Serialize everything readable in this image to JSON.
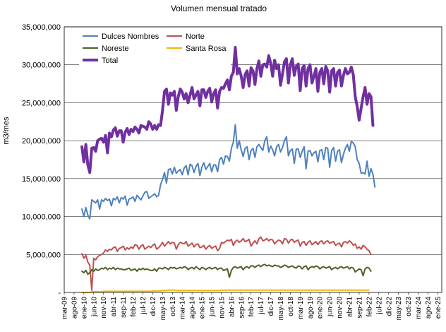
{
  "chart_data": {
    "type": "line",
    "title": "Volumen mensual tratado",
    "xlabel": "",
    "ylabel": "m3/mes",
    "y_ticks": [
      0,
      5000000,
      10000000,
      15000000,
      20000000,
      25000000,
      30000000,
      35000000
    ],
    "y_tick_labels": [
      "-",
      "5,000,000",
      "10,000,000",
      "15,000,000",
      "20,000,000",
      "25,000,000",
      "30,000,000",
      "35,000,000"
    ],
    "ylim": [
      0,
      35000000
    ],
    "x_tick_labels": [
      "mar-09",
      "ago-09",
      "ene-10",
      "jun-10",
      "nov-10",
      "abr-11",
      "sep-11",
      "feb-12",
      "jul-12",
      "dic-12",
      "may-13",
      "oct-13",
      "mar-14",
      "ago-14",
      "ene-15",
      "jun-15",
      "nov-15",
      "abr-16",
      "sep-16",
      "feb-17",
      "jul-17",
      "dic-17",
      "may-18",
      "oct-18",
      "mar-19",
      "ago-19",
      "ene-20",
      "jun-20",
      "nov-20",
      "abr-21",
      "sep-21",
      "feb-22",
      "jul-22",
      "dic-22",
      "may-23",
      "oct-23",
      "mar-24",
      "ago-24",
      "ene-25"
    ],
    "x_range_months": [
      0,
      192
    ],
    "x_tick_every_months": 5,
    "series_start": "dic-09",
    "grid": "horizontal",
    "legend_position": "top-left",
    "colors": {
      "dulces_nombres": "#4f81bd",
      "norte": "#c0504d",
      "noreste": "#4f6228",
      "santa_rosa": "#f2b600",
      "total": "#7030a0"
    },
    "series": [
      {
        "name": "Dulces Nombres",
        "color": "#4f81bd",
        "width": 2,
        "values": [
          11000000,
          10000000,
          11200000,
          10200000,
          9700000,
          12200000,
          12000000,
          11800000,
          12200000,
          11000000,
          12200000,
          12000000,
          12400000,
          12100000,
          12300000,
          11400000,
          12400000,
          12200000,
          12600000,
          11800000,
          12500000,
          12300000,
          12700000,
          11500000,
          12300000,
          12400000,
          12600000,
          12000000,
          12800000,
          12500000,
          12200000,
          12700000,
          13200000,
          13300000,
          12400000,
          12600000,
          12800000,
          13000000,
          12600000,
          12800000,
          14200000,
          14900000,
          15800000,
          14400000,
          16200000,
          16300000,
          15600000,
          16500000,
          15700000,
          16000000,
          16200000,
          15500000,
          16400000,
          16700000,
          15500000,
          16900000,
          16700000,
          15800000,
          16600000,
          17000000,
          15400000,
          16500000,
          17100000,
          16200000,
          16600000,
          17000000,
          15900000,
          16800000,
          16800000,
          15900000,
          17500000,
          17800000,
          16900000,
          18000000,
          17900000,
          17300000,
          19000000,
          19800000,
          22100000,
          19000000,
          20000000,
          18800000,
          17900000,
          19000000,
          19200000,
          17500000,
          18700000,
          19000000,
          17800000,
          19200000,
          19500000,
          19100000,
          18700000,
          20000000,
          20500000,
          18500000,
          19300000,
          18800000,
          18000000,
          19200000,
          19500000,
          18500000,
          19100000,
          20000000,
          20500000,
          18000000,
          18700000,
          18900000,
          17000000,
          18900000,
          18900000,
          17800000,
          18600000,
          19200000,
          16300000,
          18600000,
          18700000,
          18000000,
          18400000,
          18600000,
          17200000,
          18700000,
          18800000,
          17500000,
          19100000,
          19000000,
          16500000,
          18700000,
          19100000,
          17300000,
          18600000,
          18800000,
          17100000,
          18200000,
          19000000,
          19500000,
          18600000,
          19900000,
          19700000,
          19200000,
          17500000,
          17000000,
          15700000,
          15800000,
          15600000,
          17300000,
          15300000,
          16300000,
          15600000,
          13900000
        ]
      },
      {
        "name": "Norte",
        "color": "#c0504d",
        "width": 2,
        "values": [
          5100000,
          4500000,
          4900000,
          4000000,
          3600000,
          300000,
          4500000,
          4300000,
          4700000,
          4900000,
          5000000,
          5200000,
          5600000,
          5400000,
          5700000,
          5600000,
          5900000,
          6000000,
          5400000,
          5800000,
          5900000,
          6100000,
          5600000,
          5900000,
          5700000,
          6000000,
          5800000,
          6300000,
          6200000,
          5700000,
          6100000,
          6300000,
          5700000,
          5900000,
          6100000,
          5900000,
          6200000,
          6400000,
          5700000,
          5900000,
          6200000,
          6600000,
          6100000,
          6400000,
          6700000,
          6400000,
          6600000,
          6500000,
          5700000,
          6300000,
          6600000,
          6500000,
          6400000,
          6700000,
          6100000,
          6300000,
          6500000,
          6000000,
          6300000,
          6400000,
          5900000,
          6000000,
          6200000,
          5700000,
          6000000,
          6200000,
          5800000,
          6000000,
          6100000,
          5500000,
          5800000,
          6600000,
          6500000,
          6700000,
          6900000,
          6800000,
          7000000,
          6200000,
          6700000,
          6900000,
          6600000,
          6800000,
          7100000,
          6700000,
          6800000,
          7000000,
          6100000,
          6500000,
          6800000,
          6400000,
          7100000,
          7300000,
          6800000,
          6900000,
          7100000,
          6800000,
          7000000,
          6900000,
          6400000,
          6700000,
          6900000,
          6800000,
          6400000,
          7100000,
          7000000,
          6500000,
          6900000,
          7000000,
          6600000,
          6800000,
          6900000,
          6100000,
          6600000,
          6700000,
          6200000,
          6600000,
          6800000,
          6300000,
          6500000,
          6700000,
          6300000,
          6700000,
          6800000,
          6400000,
          6700000,
          6800000,
          6500000,
          6600000,
          6700000,
          6200000,
          6400000,
          6500000,
          6000000,
          6600000,
          6700000,
          6500000,
          6800000,
          6600000,
          6200000,
          6400000,
          5800000,
          6000000,
          5700000,
          6200000,
          6000000,
          5700000,
          5500000,
          5000000
        ]
      },
      {
        "name": "Noreste",
        "color": "#4f6228",
        "width": 2,
        "values": [
          2800000,
          2600000,
          2900000,
          2400000,
          2600000,
          3000000,
          2800000,
          3100000,
          2900000,
          3000000,
          3200000,
          3100000,
          3300000,
          3000000,
          3200000,
          3100000,
          3300000,
          3000000,
          3200000,
          3100000,
          3100000,
          3000000,
          3000000,
          3100000,
          3200000,
          2900000,
          3000000,
          3100000,
          2800000,
          3100000,
          3000000,
          3200000,
          3000000,
          3100000,
          3000000,
          2900000,
          2900000,
          3100000,
          2800000,
          3200000,
          3200000,
          3100000,
          3300000,
          3200000,
          3000000,
          3300000,
          3200000,
          3300000,
          3100000,
          3200000,
          3300000,
          3200000,
          3400000,
          3300000,
          3000000,
          3200000,
          3300000,
          3100000,
          3400000,
          3200000,
          3000000,
          3300000,
          3200000,
          3000000,
          3200000,
          3300000,
          3100000,
          3200000,
          3300000,
          3000000,
          3200000,
          3200000,
          2900000,
          3000000,
          3100000,
          2000000,
          2900000,
          3300000,
          3400000,
          3200000,
          3300000,
          3400000,
          3000000,
          3300000,
          3400000,
          3200000,
          3500000,
          3500000,
          3300000,
          3500000,
          3600000,
          3400000,
          3600000,
          3700000,
          3500000,
          3600000,
          3500000,
          3400000,
          3600000,
          3500000,
          3500000,
          3300000,
          3400000,
          3600000,
          3500000,
          3300000,
          3400000,
          3500000,
          3300000,
          3200000,
          3500000,
          3400000,
          3100000,
          3400000,
          3500000,
          3000000,
          3300000,
          3400000,
          3300000,
          3500000,
          3400000,
          3100000,
          3300000,
          3400000,
          3200000,
          3300000,
          3400000,
          3000000,
          3200000,
          3300000,
          3100000,
          3300000,
          3400000,
          3200000,
          3300000,
          3400000,
          3100000,
          3300000,
          3200000,
          2700000,
          2900000,
          3100000,
          3000000,
          2200000,
          3100000,
          3300000,
          3200000,
          2800000
        ]
      },
      {
        "name": "Santa Rosa",
        "color": "#f2b600",
        "width": 2,
        "values": [
          0,
          0,
          0,
          0,
          0,
          100000,
          100000,
          100000,
          100000,
          100000,
          100000,
          150000,
          150000,
          150000,
          150000,
          150000,
          150000,
          150000,
          150000,
          150000,
          150000,
          150000,
          150000,
          150000,
          150000,
          150000,
          150000,
          150000,
          150000,
          150000,
          150000,
          150000,
          150000,
          150000,
          150000,
          150000,
          200000,
          200000,
          200000,
          200000,
          200000,
          250000,
          250000,
          250000,
          300000,
          300000,
          300000,
          300000,
          250000,
          250000,
          250000,
          250000,
          250000,
          250000,
          250000,
          250000,
          250000,
          250000,
          250000,
          250000,
          250000,
          250000,
          250000,
          250000,
          250000,
          250000,
          250000,
          250000,
          250000,
          250000,
          250000,
          300000,
          300000,
          300000,
          300000,
          300000,
          300000,
          300000,
          300000,
          300000,
          300000,
          300000,
          300000,
          300000,
          300000,
          300000,
          300000,
          300000,
          300000,
          300000,
          300000,
          300000,
          300000,
          300000,
          300000,
          300000,
          300000,
          300000,
          300000,
          300000,
          300000,
          300000,
          300000,
          300000,
          300000,
          300000,
          300000,
          300000,
          300000,
          300000,
          300000,
          300000,
          300000,
          300000,
          300000,
          300000,
          300000,
          300000,
          300000,
          300000,
          300000,
          300000,
          300000,
          300000,
          300000,
          300000,
          300000,
          300000,
          300000,
          300000,
          300000,
          300000,
          300000,
          300000,
          300000,
          300000,
          300000,
          300000,
          300000,
          300000,
          300000,
          300000,
          300000,
          300000,
          300000,
          300000,
          300000
        ]
      },
      {
        "name": "Total",
        "color": "#7030a0",
        "width": 4,
        "values": [
          19200000,
          17200000,
          19500000,
          16800000,
          15800000,
          19000000,
          19100000,
          18600000,
          20000000,
          20200000,
          20300000,
          19800000,
          20700000,
          18400000,
          21000000,
          20500000,
          21400000,
          21700000,
          20600000,
          21300000,
          21300000,
          19800000,
          21100000,
          21600000,
          20800000,
          21500000,
          21200000,
          21800000,
          21500000,
          21000000,
          22000000,
          21900000,
          21800000,
          21500000,
          22500000,
          22200000,
          21500000,
          22000000,
          21500000,
          22100000,
          22000000,
          24000000,
          26500000,
          26800000,
          24800000,
          26300000,
          26000000,
          26500000,
          24000000,
          25800000,
          26800000,
          26400000,
          25500000,
          26200000,
          25000000,
          26000000,
          27000000,
          25500000,
          26000000,
          26500000,
          24600000,
          26700000,
          26700000,
          25700000,
          26500000,
          26900000,
          25100000,
          26200000,
          26700000,
          24300000,
          26500000,
          27000000,
          26900000,
          27500000,
          28000000,
          26700000,
          28500000,
          29000000,
          32300000,
          28800000,
          29500000,
          28500000,
          27000000,
          28700000,
          29200000,
          27200000,
          29600000,
          29200000,
          27400000,
          29500000,
          30500000,
          28500000,
          30000000,
          30100000,
          29700000,
          31200000,
          30200000,
          28500000,
          30600000,
          29500000,
          30000000,
          27300000,
          28800000,
          30400000,
          30800000,
          27600000,
          30000000,
          30800000,
          28600000,
          29800000,
          30100000,
          26600000,
          29500000,
          29900000,
          27200000,
          29500000,
          30000000,
          27600000,
          28500000,
          29500000,
          26500000,
          29000000,
          29500000,
          27500000,
          29800000,
          29200000,
          26400000,
          29200000,
          29500000,
          27200000,
          29000000,
          29300000,
          27200000,
          28600000,
          29500000,
          28800000,
          29000000,
          29700000,
          28700000,
          25800000,
          24500000,
          22700000,
          24300000,
          25800000,
          27000000,
          24800000,
          26200000,
          25800000,
          22000000
        ]
      }
    ]
  }
}
